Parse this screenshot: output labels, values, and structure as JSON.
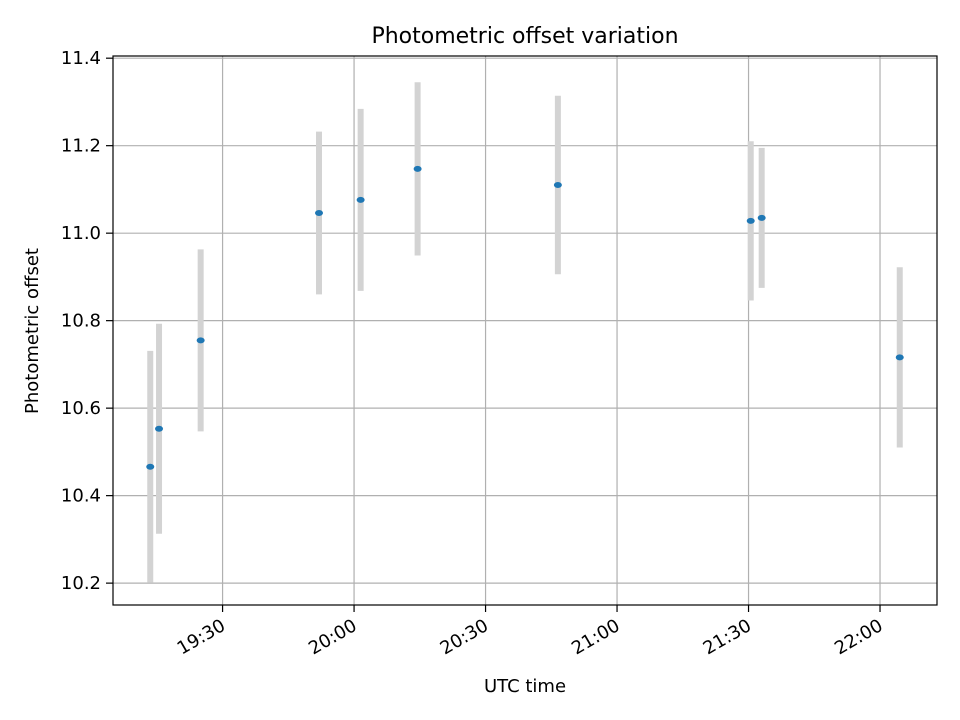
{
  "chart_data": {
    "type": "scatter",
    "title": "Photometric offset variation",
    "xlabel": "UTC time",
    "ylabel": "Photometric offset",
    "x_tick_labels": [
      "19:30",
      "20:00",
      "20:30",
      "21:00",
      "21:30",
      "22:00"
    ],
    "x_ticks": [
      "19:30",
      "20:00",
      "20:30",
      "21:00",
      "21:30",
      "22:00"
    ],
    "xlim": [
      "19:05",
      "22:13"
    ],
    "y_tick_labels": [
      "10.2",
      "10.4",
      "10.6",
      "10.8",
      "11.0",
      "11.2",
      "11.4"
    ],
    "y_ticks": [
      10.2,
      10.4,
      10.6,
      10.8,
      11.0,
      11.2,
      11.4
    ],
    "ylim": [
      10.15,
      11.405
    ],
    "grid": true,
    "series": [
      {
        "marker_color": "#1f77b4",
        "errorbar_color": "#d3d3d3",
        "points": [
          {
            "x": "19:13:30",
            "y": 10.466,
            "yerr": 0.265
          },
          {
            "x": "19:15:30",
            "y": 10.553,
            "yerr": 0.24
          },
          {
            "x": "19:25:00",
            "y": 10.755,
            "yerr": 0.208
          },
          {
            "x": "19:52:00",
            "y": 11.046,
            "yerr": 0.186
          },
          {
            "x": "20:01:30",
            "y": 11.076,
            "yerr": 0.208
          },
          {
            "x": "20:14:30",
            "y": 11.147,
            "yerr": 0.198
          },
          {
            "x": "20:46:30",
            "y": 11.11,
            "yerr": 0.204
          },
          {
            "x": "21:30:30",
            "y": 11.028,
            "yerr": 0.182
          },
          {
            "x": "21:33:00",
            "y": 11.035,
            "yerr": 0.16
          },
          {
            "x": "22:04:30",
            "y": 10.716,
            "yerr": 0.206
          }
        ]
      }
    ]
  }
}
